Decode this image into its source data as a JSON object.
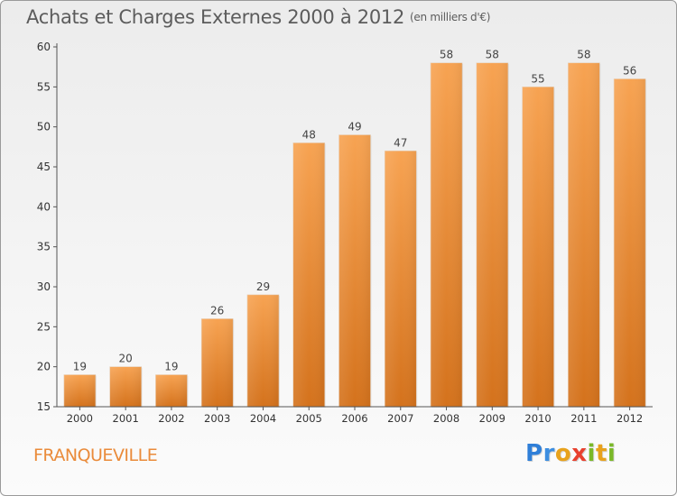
{
  "header": {
    "title": "Achats et Charges Externes 2000 à 2012",
    "unit": "(en milliers d'€)"
  },
  "footer": {
    "commune": "FRANQUEVILLE",
    "logo_letters": [
      "P",
      "r",
      "o",
      "x",
      "i",
      "t",
      "i"
    ],
    "logo_colors": [
      "#2f7fd8",
      "#3d8ee0",
      "#e8a21c",
      "#e8402e",
      "#7ab828",
      "#e8a21c",
      "#7ab828"
    ]
  },
  "colors": {
    "bar_light": "#f7a352",
    "bar_dark": "#d4721c",
    "accent": "#ea8b3a"
  },
  "chart_data": {
    "type": "bar",
    "categories": [
      "2000",
      "2001",
      "2002",
      "2003",
      "2004",
      "2005",
      "2006",
      "2007",
      "2008",
      "2009",
      "2010",
      "2011",
      "2012"
    ],
    "values": [
      19,
      20,
      19,
      26,
      29,
      48,
      49,
      47,
      58,
      58,
      55,
      58,
      56
    ],
    "ylim": [
      15,
      60
    ],
    "yticks": [
      15,
      20,
      25,
      30,
      35,
      40,
      45,
      50,
      55,
      60
    ],
    "grid": false
  }
}
